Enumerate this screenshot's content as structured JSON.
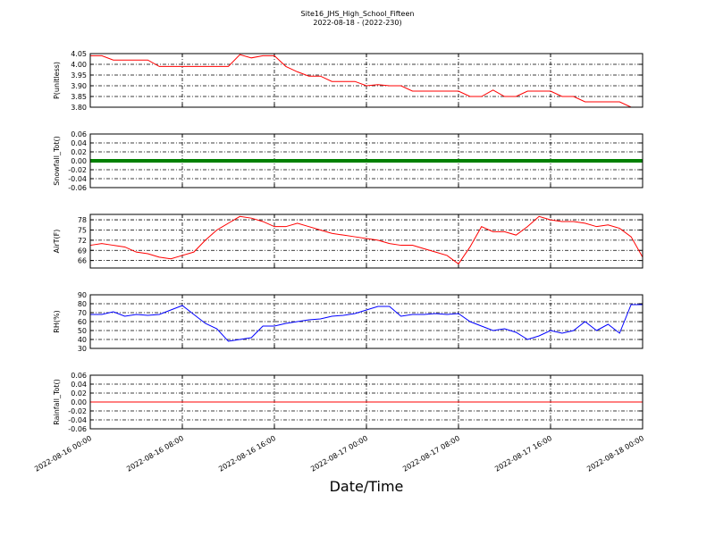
{
  "chart_data": [
    {
      "type": "line",
      "title": "Site16_JHS_High_School_Fifteen",
      "subtitle": "2022-08-18 - (2022-230)",
      "ylabel": "P(unitless)",
      "x": [
        "2022-08-16 00:00",
        "2022-08-16 01:00",
        "2022-08-16 02:00",
        "2022-08-16 03:00",
        "2022-08-16 04:00",
        "2022-08-16 05:00",
        "2022-08-16 06:00",
        "2022-08-16 07:00",
        "2022-08-16 08:00",
        "2022-08-16 09:00",
        "2022-08-16 10:00",
        "2022-08-16 11:00",
        "2022-08-16 12:00",
        "2022-08-16 13:00",
        "2022-08-16 14:00",
        "2022-08-16 15:00",
        "2022-08-16 16:00",
        "2022-08-16 17:00",
        "2022-08-16 18:00",
        "2022-08-16 19:00",
        "2022-08-16 20:00",
        "2022-08-16 21:00",
        "2022-08-16 22:00",
        "2022-08-16 23:00",
        "2022-08-17 00:00",
        "2022-08-17 01:00",
        "2022-08-17 02:00",
        "2022-08-17 03:00",
        "2022-08-17 04:00",
        "2022-08-17 05:00",
        "2022-08-17 06:00",
        "2022-08-17 07:00",
        "2022-08-17 08:00",
        "2022-08-17 09:00",
        "2022-08-17 10:00",
        "2022-08-17 11:00",
        "2022-08-17 12:00",
        "2022-08-17 13:00",
        "2022-08-17 14:00",
        "2022-08-17 15:00",
        "2022-08-17 16:00",
        "2022-08-17 17:00",
        "2022-08-17 18:00",
        "2022-08-17 19:00",
        "2022-08-17 20:00",
        "2022-08-17 21:00",
        "2022-08-17 22:00",
        "2022-08-17 23:00",
        "2022-08-18 00:00"
      ],
      "series": [
        {
          "color": "#ff0000",
          "values": [
            4.04,
            4.04,
            4.02,
            4.02,
            4.02,
            4.02,
            3.99,
            3.99,
            3.99,
            3.99,
            3.99,
            3.99,
            3.99,
            4.045,
            4.03,
            4.04,
            4.04,
            3.99,
            3.965,
            3.945,
            3.945,
            3.92,
            3.92,
            3.92,
            3.9,
            3.905,
            3.9,
            3.9,
            3.875,
            3.875,
            3.875,
            3.875,
            3.875,
            3.85,
            3.85,
            3.88,
            3.85,
            3.85,
            3.875,
            3.875,
            3.875,
            3.85,
            3.85,
            3.825,
            3.825,
            3.825,
            3.825,
            3.8,
            3.8
          ]
        }
      ],
      "xlim": [
        "2022-08-16 00:00",
        "2022-08-18 00:00"
      ],
      "ylim": [
        3.8,
        4.05
      ],
      "yticks": [
        {
          "value": 3.8,
          "label": "3.80"
        },
        3.85,
        {
          "value": 3.9,
          "label": "3.90"
        },
        3.95,
        {
          "value": 4.0,
          "label": "4.00"
        },
        4.05
      ],
      "grid": true
    },
    {
      "type": "line",
      "ylabel": "Snowfall_Tot()",
      "x": [
        "2022-08-16 00:00",
        "2022-08-18 00:00"
      ],
      "series": [
        {
          "color": "#008000",
          "values": [
            0,
            0
          ]
        }
      ],
      "linewidth": 4,
      "xlim": [
        "2022-08-16 00:00",
        "2022-08-18 00:00"
      ],
      "ylim": [
        -0.06,
        0.06
      ],
      "yticks": [
        -0.06,
        -0.04,
        -0.02,
        {
          "value": 0,
          "label": "0.00"
        },
        0.02,
        0.04,
        0.06
      ],
      "grid": true
    },
    {
      "type": "line",
      "ylabel": "AirT(F)",
      "x": [
        "2022-08-16 00:00",
        "2022-08-16 01:00",
        "2022-08-16 02:00",
        "2022-08-16 03:00",
        "2022-08-16 04:00",
        "2022-08-16 05:00",
        "2022-08-16 06:00",
        "2022-08-16 07:00",
        "2022-08-16 08:00",
        "2022-08-16 09:00",
        "2022-08-16 10:00",
        "2022-08-16 11:00",
        "2022-08-16 12:00",
        "2022-08-16 13:00",
        "2022-08-16 14:00",
        "2022-08-16 15:00",
        "2022-08-16 16:00",
        "2022-08-16 17:00",
        "2022-08-16 18:00",
        "2022-08-16 19:00",
        "2022-08-16 20:00",
        "2022-08-16 21:00",
        "2022-08-16 22:00",
        "2022-08-16 23:00",
        "2022-08-17 00:00",
        "2022-08-17 01:00",
        "2022-08-17 02:00",
        "2022-08-17 03:00",
        "2022-08-17 04:00",
        "2022-08-17 05:00",
        "2022-08-17 06:00",
        "2022-08-17 07:00",
        "2022-08-17 08:00",
        "2022-08-17 09:00",
        "2022-08-17 10:00",
        "2022-08-17 11:00",
        "2022-08-17 12:00",
        "2022-08-17 13:00",
        "2022-08-17 14:00",
        "2022-08-17 15:00",
        "2022-08-17 16:00",
        "2022-08-17 17:00",
        "2022-08-17 18:00",
        "2022-08-17 19:00",
        "2022-08-17 20:00",
        "2022-08-17 21:00",
        "2022-08-17 22:00",
        "2022-08-17 23:00",
        "2022-08-18 00:00"
      ],
      "series": [
        {
          "color": "#ff0000",
          "values": [
            70.5,
            71,
            70.5,
            70,
            68.5,
            68,
            67,
            66.5,
            67.5,
            68.5,
            72,
            75,
            77,
            79,
            78.5,
            77.5,
            76,
            76,
            77,
            76,
            75,
            74,
            73.5,
            73,
            72.5,
            72,
            71,
            70.5,
            70.5,
            69.5,
            68.5,
            67.5,
            65,
            70,
            76,
            74.5,
            74.5,
            73.5,
            76,
            79,
            78,
            77.5,
            77.5,
            77,
            76,
            76.5,
            75.5,
            73,
            67
          ]
        }
      ],
      "xlim": [
        "2022-08-16 00:00",
        "2022-08-18 00:00"
      ],
      "ylim": [
        63.8,
        79.6
      ],
      "yticks": [
        66,
        69,
        72,
        75,
        78
      ],
      "grid": true
    },
    {
      "type": "line",
      "ylabel": "RH(%)",
      "x": [
        "2022-08-16 00:00",
        "2022-08-16 01:00",
        "2022-08-16 02:00",
        "2022-08-16 03:00",
        "2022-08-16 04:00",
        "2022-08-16 05:00",
        "2022-08-16 06:00",
        "2022-08-16 07:00",
        "2022-08-16 08:00",
        "2022-08-16 09:00",
        "2022-08-16 10:00",
        "2022-08-16 11:00",
        "2022-08-16 12:00",
        "2022-08-16 13:00",
        "2022-08-16 14:00",
        "2022-08-16 15:00",
        "2022-08-16 16:00",
        "2022-08-16 17:00",
        "2022-08-16 18:00",
        "2022-08-16 19:00",
        "2022-08-16 20:00",
        "2022-08-16 21:00",
        "2022-08-16 22:00",
        "2022-08-16 23:00",
        "2022-08-17 00:00",
        "2022-08-17 01:00",
        "2022-08-17 02:00",
        "2022-08-17 03:00",
        "2022-08-17 04:00",
        "2022-08-17 05:00",
        "2022-08-17 06:00",
        "2022-08-17 07:00",
        "2022-08-17 08:00",
        "2022-08-17 09:00",
        "2022-08-17 10:00",
        "2022-08-17 11:00",
        "2022-08-17 12:00",
        "2022-08-17 13:00",
        "2022-08-17 14:00",
        "2022-08-17 15:00",
        "2022-08-17 16:00",
        "2022-08-17 17:00",
        "2022-08-17 18:00",
        "2022-08-17 19:00",
        "2022-08-17 20:00",
        "2022-08-17 21:00",
        "2022-08-17 22:00",
        "2022-08-17 23:00",
        "2022-08-18 00:00"
      ],
      "series": [
        {
          "color": "#0000ff",
          "values": [
            68,
            68,
            71,
            66,
            68,
            67,
            68,
            73,
            78,
            68,
            58,
            52,
            38,
            40,
            42,
            55,
            55,
            58,
            60,
            62,
            63,
            66,
            67,
            69,
            73,
            77,
            77,
            66,
            68,
            68,
            69,
            68,
            69,
            60,
            55,
            50,
            52,
            48,
            40,
            44,
            50,
            47,
            50,
            60,
            50,
            57,
            47,
            79,
            79
          ]
        }
      ],
      "xlim": [
        "2022-08-16 00:00",
        "2022-08-18 00:00"
      ],
      "ylim": [
        30,
        90
      ],
      "yticks": [
        30,
        40,
        50,
        60,
        70,
        80,
        90
      ],
      "grid": true
    },
    {
      "type": "line",
      "ylabel": "Rainfall_Tot()",
      "xlabel": "Date/Time",
      "x": [
        "2022-08-16 00:00",
        "2022-08-18 00:00"
      ],
      "series": [
        {
          "color": "#ff0000",
          "values": [
            0,
            0
          ]
        }
      ],
      "xlim": [
        "2022-08-16 00:00",
        "2022-08-18 00:00"
      ],
      "ylim": [
        -0.06,
        0.06
      ],
      "yticks": [
        -0.06,
        -0.04,
        -0.02,
        {
          "value": 0,
          "label": "0.00"
        },
        0.02,
        0.04,
        0.06
      ],
      "xticks": [
        "2022-08-16 00:00",
        "2022-08-16 08:00",
        "2022-08-16 16:00",
        "2022-08-17 00:00",
        "2022-08-17 08:00",
        "2022-08-17 16:00",
        "2022-08-18 00:00"
      ],
      "grid": true
    }
  ]
}
